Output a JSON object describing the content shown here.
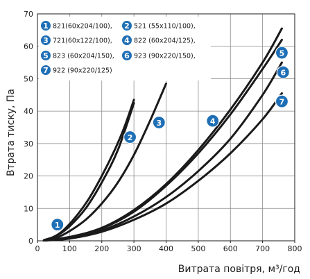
{
  "chart_data": {
    "type": "line",
    "xlabel": "Витрата повітря, м³/год",
    "ylabel": "Втрата тиску, Па",
    "xlim": [
      0,
      800
    ],
    "ylim": [
      0,
      70
    ],
    "xticks": [
      0,
      100,
      200,
      300,
      400,
      500,
      600,
      700,
      800
    ],
    "yticks": [
      0,
      10,
      20,
      30,
      40,
      50,
      60,
      70
    ],
    "grid": true,
    "legend_position": "top-left",
    "line_color": "#1a1a1a",
    "badge_color": "#1f6fb6",
    "series": [
      {
        "badge": "1",
        "name": "821(60x204/100),",
        "points": [
          [
            20,
            0.2
          ],
          [
            50,
            1.2
          ],
          [
            80,
            3.2
          ],
          [
            120,
            7.5
          ],
          [
            160,
            13
          ],
          [
            200,
            20
          ],
          [
            240,
            28
          ],
          [
            270,
            35
          ],
          [
            300,
            43.5
          ]
        ],
        "badge_at": [
          62,
          5
        ]
      },
      {
        "badge": "2",
        "name": "521 (55x110/100),",
        "points": [
          [
            20,
            0.2
          ],
          [
            60,
            1.6
          ],
          [
            100,
            4.5
          ],
          [
            150,
            10
          ],
          [
            200,
            18
          ],
          [
            250,
            28
          ],
          [
            300,
            42.5
          ]
        ],
        "badge_at": [
          288,
          32
        ]
      },
      {
        "badge": "3",
        "name": "721(60x122/100),",
        "points": [
          [
            20,
            0.1
          ],
          [
            60,
            1
          ],
          [
            100,
            3
          ],
          [
            150,
            6.5
          ],
          [
            200,
            11.5
          ],
          [
            250,
            18
          ],
          [
            300,
            26.5
          ],
          [
            350,
            37
          ],
          [
            400,
            48.5
          ]
        ],
        "badge_at": [
          378,
          36.5
        ]
      },
      {
        "badge": "4",
        "name": "822 (60x204/125),",
        "points": [
          [
            20,
            0.1
          ],
          [
            100,
            1.2
          ],
          [
            200,
            4
          ],
          [
            300,
            9.5
          ],
          [
            400,
            17.5
          ],
          [
            500,
            28
          ],
          [
            600,
            40.5
          ],
          [
            700,
            55
          ],
          [
            760,
            65.5
          ]
        ],
        "badge_at": [
          545,
          37
        ]
      },
      {
        "badge": "5",
        "name": "823 (60x204/150),",
        "points": [
          [
            20,
            0.1
          ],
          [
            100,
            1
          ],
          [
            200,
            3.8
          ],
          [
            300,
            9
          ],
          [
            400,
            17
          ],
          [
            500,
            27
          ],
          [
            600,
            39
          ],
          [
            700,
            53
          ],
          [
            760,
            62
          ]
        ],
        "badge_at": [
          760,
          58
        ]
      },
      {
        "badge": "6",
        "name": "923 (90x220/150),",
        "points": [
          [
            20,
            0.1
          ],
          [
            100,
            0.8
          ],
          [
            200,
            3.2
          ],
          [
            300,
            7.5
          ],
          [
            400,
            13.5
          ],
          [
            500,
            21.5
          ],
          [
            600,
            31.5
          ],
          [
            700,
            45
          ],
          [
            760,
            55
          ]
        ],
        "badge_at": [
          764,
          52
        ]
      },
      {
        "badge": "7",
        "name": "922 (90x220/125)",
        "points": [
          [
            20,
            0.1
          ],
          [
            100,
            0.7
          ],
          [
            200,
            2.8
          ],
          [
            300,
            6.5
          ],
          [
            400,
            11.5
          ],
          [
            500,
            18.5
          ],
          [
            600,
            27
          ],
          [
            700,
            37.5
          ],
          [
            760,
            45.5
          ]
        ],
        "badge_at": [
          760,
          43
        ]
      }
    ]
  }
}
